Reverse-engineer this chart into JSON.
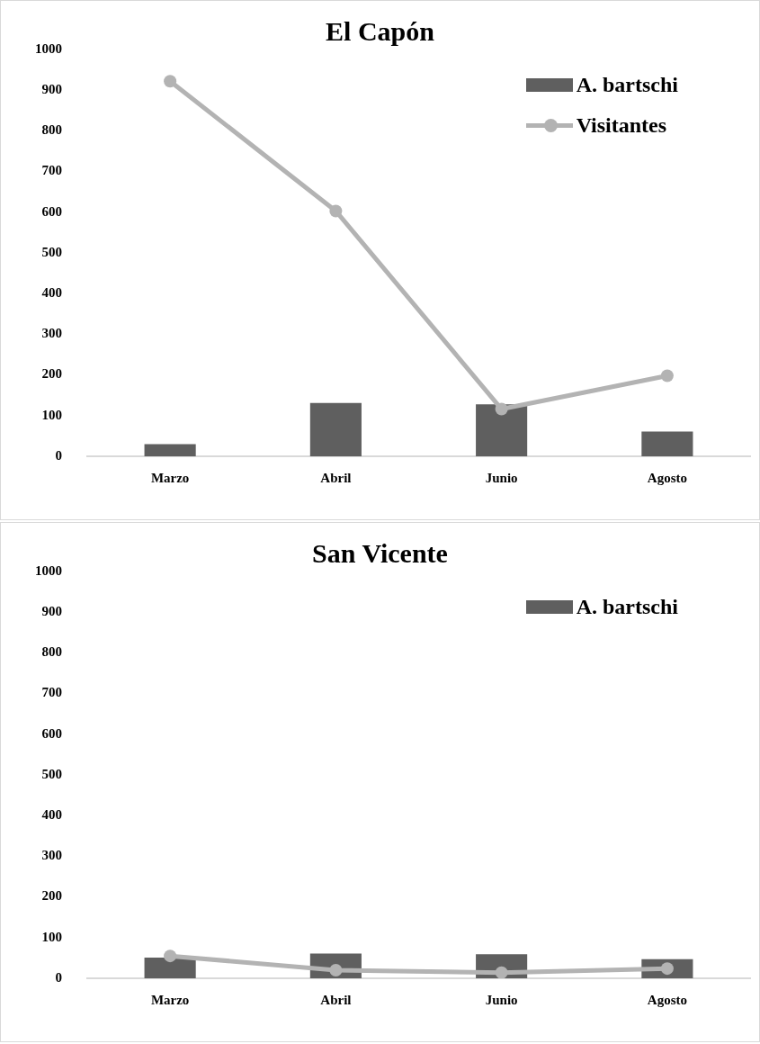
{
  "chart_data": [
    {
      "type": "bar",
      "title": "El Capón",
      "categories": [
        "Marzo",
        "Abril",
        "Junio",
        "Agosto"
      ],
      "series": [
        {
          "name": "A. bartschi",
          "color": "#5f5f5f",
          "values": [
            30,
            131,
            128,
            61
          ]
        },
        {
          "name": "Visitantes",
          "type": "line",
          "color": "#b3b3b3",
          "values": [
            922,
            603,
            116,
            198
          ]
        }
      ],
      "ylim": [
        0,
        1000
      ],
      "yticks": [
        0,
        100,
        200,
        300,
        400,
        500,
        600,
        700,
        800,
        900,
        1000
      ],
      "legend": "top right",
      "marker": "circle"
    },
    {
      "type": "bar",
      "title": "San Vicente",
      "categories": [
        "Marzo",
        "Abril",
        "Junio",
        "Agosto"
      ],
      "series": [
        {
          "name": "A. bartschi",
          "color": "#5f5f5f",
          "values": [
            51,
            61,
            59,
            47
          ]
        },
        {
          "type": "line",
          "color": "#b3b3b3",
          "values": [
            55,
            20,
            14,
            24
          ]
        }
      ],
      "ylim": [
        0,
        1000
      ],
      "yticks": [
        0,
        100,
        200,
        300,
        400,
        500,
        600,
        700,
        800,
        900,
        1000
      ],
      "legend": "top right",
      "marker": "circle"
    }
  ]
}
